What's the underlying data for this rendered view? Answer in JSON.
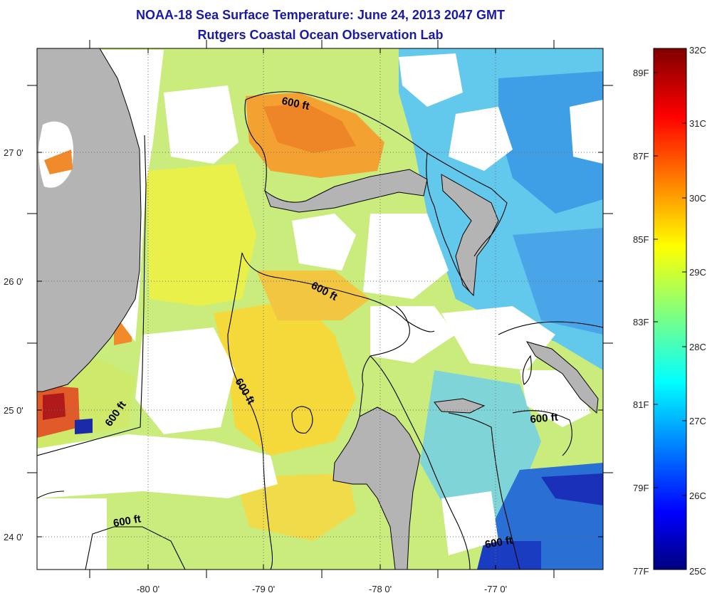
{
  "title": "NOAA-18 Sea Surface Temperature:  June 24, 2013 2047 GMT",
  "subtitle": "Rutgers Coastal Ocean Observation Lab",
  "map": {
    "lat_labels": [
      "27 0'",
      "26 0'",
      "25 0'",
      "24 0'"
    ],
    "lon_labels": [
      "-80 0'",
      "-79 0'",
      "-78 0'",
      "-77 0'"
    ],
    "contour_label": "600 ft",
    "land_color": "#b4b4b4",
    "cloud_color": "#ffffff"
  },
  "colorbar": {
    "celsius_labels": [
      "32C",
      "31C",
      "30C",
      "29C",
      "28C",
      "27C",
      "26C",
      "25C"
    ],
    "fahrenheit_labels": [
      "89F",
      "87F",
      "85F",
      "83F",
      "81F",
      "79F",
      "77F"
    ],
    "colormap": "jet",
    "min_c": 25,
    "max_c": 32
  }
}
